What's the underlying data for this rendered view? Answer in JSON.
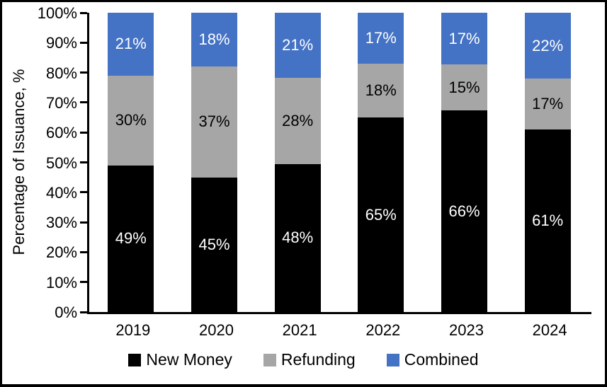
{
  "chart_data": {
    "type": "bar",
    "stacked": true,
    "categories": [
      "2019",
      "2020",
      "2021",
      "2022",
      "2023",
      "2024"
    ],
    "series": [
      {
        "name": "New Money",
        "color": "#000000",
        "label_color": "#ffffff",
        "values": [
          49,
          45,
          48,
          65,
          66,
          61
        ]
      },
      {
        "name": "Refunding",
        "color": "#a6a6a6",
        "label_color": "#000000",
        "values": [
          30,
          37,
          28,
          18,
          15,
          17
        ]
      },
      {
        "name": "Combined",
        "color": "#4472c4",
        "label_color": "#ffffff",
        "values": [
          21,
          18,
          21,
          17,
          17,
          22
        ]
      }
    ],
    "title": "",
    "xlabel": "",
    "ylabel": "Percentage of Issuance, %",
    "ylim": [
      0,
      100
    ],
    "y_ticks": [
      "0%",
      "10%",
      "20%",
      "30%",
      "40%",
      "50%",
      "60%",
      "70%",
      "80%",
      "90%",
      "100%"
    ],
    "grid": false,
    "legend_position": "bottom",
    "bar_label_format": "percent",
    "axis_color": "#000000"
  }
}
